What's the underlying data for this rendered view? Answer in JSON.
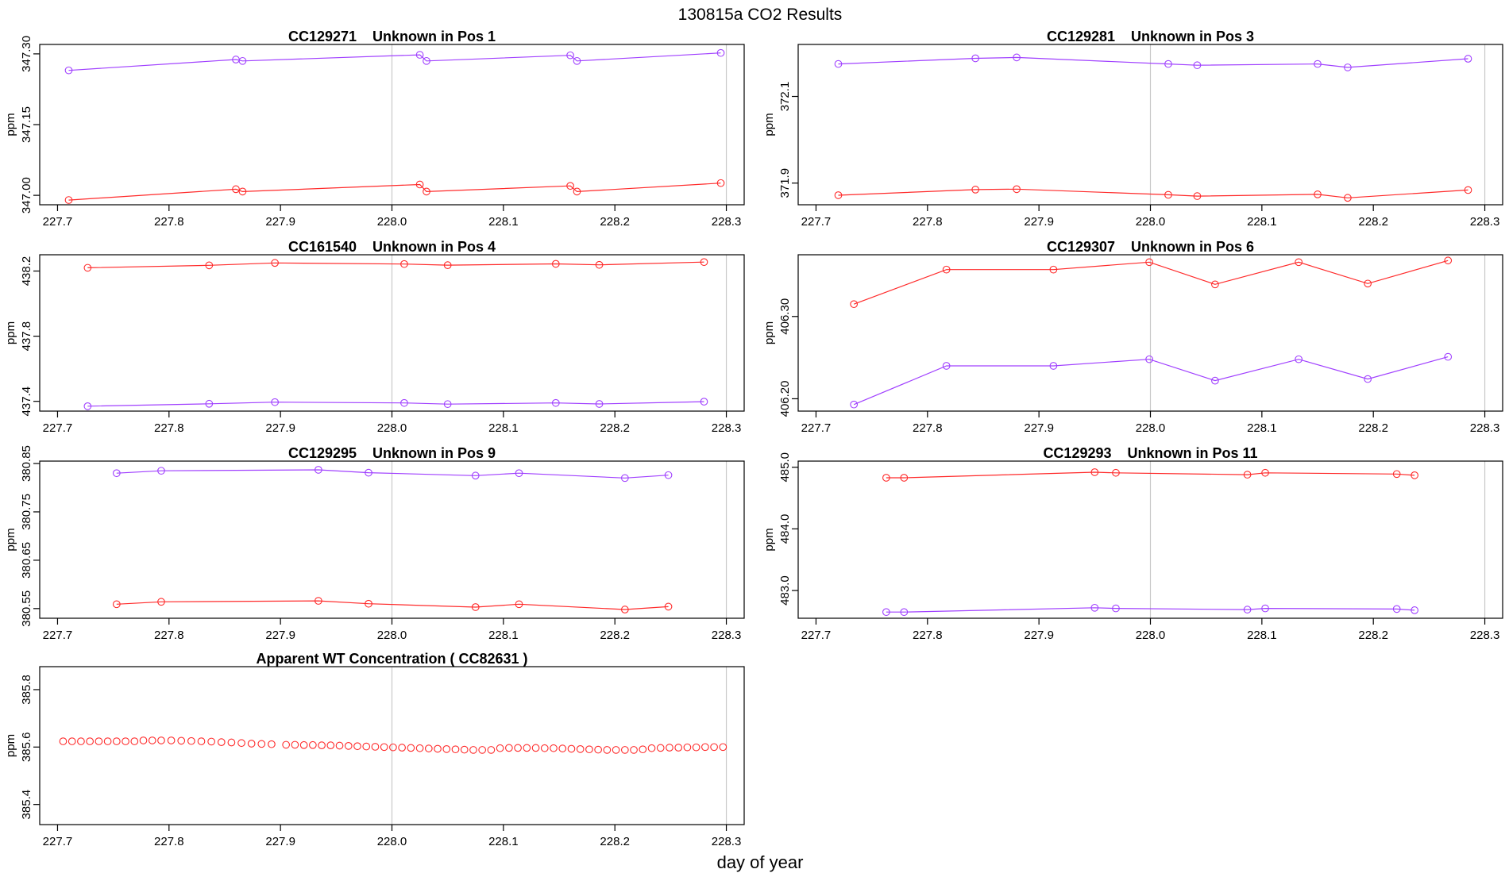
{
  "figure": {
    "title": "130815a  CO2 Results",
    "xlabel": "day of year"
  },
  "colors": {
    "red": "#ff2a2a",
    "purple": "#a040ff",
    "vline": "#c8c8c8",
    "frame": "#000000"
  },
  "chart_data": [
    {
      "type": "line",
      "title": "CC129271    Unknown in Pos 1",
      "ylabel": "ppm",
      "xlim": [
        227.684,
        228.316
      ],
      "ylim": [
        346.98,
        347.32
      ],
      "xticks": [
        227.7,
        227.8,
        227.9,
        228.0,
        228.1,
        228.2,
        228.3
      ],
      "xtick_labels": [
        "227.7",
        "227.8",
        "227.9",
        "228.0",
        "228.1",
        "228.2",
        "228.3"
      ],
      "yticks": [
        347.0,
        347.15,
        347.3
      ],
      "ytick_labels": [
        "347.00",
        "347.15",
        "347.30"
      ],
      "vlines": [
        228.0,
        228.3
      ],
      "series": [
        {
          "color": "purple",
          "x": [
            227.71,
            227.86,
            227.866,
            228.025,
            228.031,
            228.16,
            228.166,
            228.295
          ],
          "y": [
            347.265,
            347.288,
            347.285,
            347.298,
            347.285,
            347.297,
            347.285,
            347.302
          ]
        },
        {
          "color": "red",
          "x": [
            227.71,
            227.86,
            227.866,
            228.025,
            228.031,
            228.16,
            228.166,
            228.295
          ],
          "y": [
            346.99,
            347.013,
            347.008,
            347.023,
            347.008,
            347.02,
            347.008,
            347.026
          ]
        }
      ]
    },
    {
      "type": "line",
      "title": "CC129281    Unknown in Pos 3",
      "ylabel": "ppm",
      "xlim": [
        227.684,
        228.316
      ],
      "ylim": [
        371.85,
        372.22
      ],
      "xticks": [
        227.7,
        227.8,
        227.9,
        228.0,
        228.1,
        228.2,
        228.3
      ],
      "xtick_labels": [
        "227.7",
        "227.8",
        "227.9",
        "228.0",
        "228.1",
        "228.2",
        "228.3"
      ],
      "yticks": [
        371.9,
        372.1
      ],
      "ytick_labels": [
        "371.9",
        "372.1"
      ],
      "vlines": [
        228.0,
        228.3
      ],
      "series": [
        {
          "color": "purple",
          "x": [
            227.72,
            227.843,
            227.88,
            228.016,
            228.042,
            228.15,
            228.177,
            228.285
          ],
          "y": [
            372.175,
            372.188,
            372.19,
            372.175,
            372.172,
            372.175,
            372.167,
            372.187
          ]
        },
        {
          "color": "red",
          "x": [
            227.72,
            227.843,
            227.88,
            228.016,
            228.042,
            228.15,
            228.177,
            228.285
          ],
          "y": [
            371.872,
            371.885,
            371.886,
            371.873,
            371.87,
            371.874,
            371.866,
            371.884
          ]
        }
      ]
    },
    {
      "type": "line",
      "title": "CC161540    Unknown in Pos 4",
      "ylabel": "ppm",
      "xlim": [
        227.684,
        228.316
      ],
      "ylim": [
        437.34,
        438.3
      ],
      "xticks": [
        227.7,
        227.8,
        227.9,
        228.0,
        228.1,
        228.2,
        228.3
      ],
      "xtick_labels": [
        "227.7",
        "227.8",
        "227.9",
        "228.0",
        "228.1",
        "228.2",
        "228.3"
      ],
      "yticks": [
        437.4,
        437.8,
        438.2
      ],
      "ytick_labels": [
        "437.4",
        "437.8",
        "438.2"
      ],
      "vlines": [
        228.0,
        228.3
      ],
      "series": [
        {
          "color": "red",
          "x": [
            227.727,
            227.836,
            227.895,
            228.011,
            228.05,
            228.147,
            228.186,
            228.28
          ],
          "y": [
            438.22,
            438.235,
            438.25,
            438.243,
            438.236,
            438.244,
            438.238,
            438.255
          ]
        },
        {
          "color": "purple",
          "x": [
            227.727,
            227.836,
            227.895,
            228.011,
            228.05,
            228.147,
            228.186,
            228.28
          ],
          "y": [
            437.37,
            437.385,
            437.395,
            437.39,
            437.383,
            437.39,
            437.384,
            437.398
          ]
        }
      ]
    },
    {
      "type": "line",
      "title": "CC129307    Unknown in Pos 6",
      "ylabel": "ppm",
      "xlim": [
        227.684,
        228.316
      ],
      "ylim": [
        406.185,
        406.375
      ],
      "xticks": [
        227.7,
        227.8,
        227.9,
        228.0,
        228.1,
        228.2,
        228.3
      ],
      "xtick_labels": [
        "227.7",
        "227.8",
        "227.9",
        "228.0",
        "228.1",
        "228.2",
        "228.3"
      ],
      "yticks": [
        406.2,
        406.3
      ],
      "ytick_labels": [
        "406.20",
        "406.30"
      ],
      "vlines": [
        228.0,
        228.3
      ],
      "series": [
        {
          "color": "red",
          "x": [
            227.734,
            227.817,
            227.913,
            227.999,
            228.058,
            228.133,
            228.195,
            228.267
          ],
          "y": [
            406.315,
            406.357,
            406.357,
            406.366,
            406.339,
            406.366,
            406.34,
            406.368
          ]
        },
        {
          "color": "purple",
          "x": [
            227.734,
            227.817,
            227.913,
            227.999,
            228.058,
            228.133,
            228.195,
            228.267
          ],
          "y": [
            406.193,
            406.24,
            406.24,
            406.248,
            406.222,
            406.248,
            406.224,
            406.251
          ]
        }
      ]
    },
    {
      "type": "line",
      "title": "CC129295    Unknown in Pos 9",
      "ylabel": "ppm",
      "xlim": [
        227.684,
        228.316
      ],
      "ylim": [
        380.53,
        380.855
      ],
      "xticks": [
        227.7,
        227.8,
        227.9,
        228.0,
        228.1,
        228.2,
        228.3
      ],
      "xtick_labels": [
        "227.7",
        "227.8",
        "227.9",
        "228.0",
        "228.1",
        "228.2",
        "228.3"
      ],
      "yticks": [
        380.55,
        380.65,
        380.75,
        380.85
      ],
      "ytick_labels": [
        "380.55",
        "380.65",
        "380.75",
        "380.85"
      ],
      "vlines": [
        228.0,
        228.3
      ],
      "series": [
        {
          "color": "purple",
          "x": [
            227.753,
            227.793,
            227.934,
            227.979,
            228.075,
            228.114,
            228.209,
            228.248
          ],
          "y": [
            380.83,
            380.835,
            380.837,
            380.831,
            380.825,
            380.83,
            380.82,
            380.826
          ]
        },
        {
          "color": "red",
          "x": [
            227.753,
            227.793,
            227.934,
            227.979,
            228.075,
            228.114,
            228.209,
            228.248
          ],
          "y": [
            380.559,
            380.564,
            380.566,
            380.56,
            380.553,
            380.559,
            380.548,
            380.554
          ]
        }
      ]
    },
    {
      "type": "line",
      "title": "CC129293    Unknown in Pos 11",
      "ylabel": "ppm",
      "xlim": [
        227.684,
        228.316
      ],
      "ylim": [
        482.55,
        485.1
      ],
      "xticks": [
        227.7,
        227.8,
        227.9,
        228.0,
        228.1,
        228.2,
        228.3
      ],
      "xtick_labels": [
        "227.7",
        "227.8",
        "227.9",
        "228.0",
        "228.1",
        "228.2",
        "228.3"
      ],
      "yticks": [
        483.0,
        484.0,
        485.0
      ],
      "ytick_labels": [
        "483.0",
        "484.0",
        "485.0"
      ],
      "vlines": [
        228.0,
        228.3
      ],
      "series": [
        {
          "color": "red",
          "x": [
            227.763,
            227.779,
            227.95,
            227.969,
            228.087,
            228.103,
            228.221,
            228.237
          ],
          "y": [
            484.83,
            484.83,
            484.92,
            484.91,
            484.88,
            484.91,
            484.89,
            484.87
          ]
        },
        {
          "color": "purple",
          "x": [
            227.763,
            227.779,
            227.95,
            227.969,
            228.087,
            228.103,
            228.221,
            228.237
          ],
          "y": [
            482.65,
            482.65,
            482.72,
            482.71,
            482.69,
            482.71,
            482.7,
            482.68
          ]
        }
      ]
    },
    {
      "type": "scatter",
      "title": "Apparent WT Concentration ( CC82631 )",
      "ylabel": "ppm",
      "xlim": [
        227.684,
        228.316
      ],
      "ylim": [
        385.33,
        385.88
      ],
      "xticks": [
        227.7,
        227.8,
        227.9,
        228.0,
        228.1,
        228.2,
        228.3
      ],
      "xtick_labels": [
        "227.7",
        "227.8",
        "227.9",
        "228.0",
        "228.1",
        "228.2",
        "228.3"
      ],
      "yticks": [
        385.4,
        385.6,
        385.8
      ],
      "ytick_labels": [
        "385.4",
        "385.6",
        "385.8"
      ],
      "vlines": [
        228.0,
        228.3
      ],
      "series": [
        {
          "color": "red",
          "x": [
            227.705,
            227.713,
            227.721,
            227.729,
            227.737,
            227.745,
            227.753,
            227.761,
            227.769,
            227.777,
            227.785,
            227.793,
            227.802,
            227.811,
            227.82,
            227.829,
            227.838,
            227.847,
            227.856,
            227.865,
            227.874,
            227.883,
            227.892,
            227.905,
            227.913,
            227.921,
            227.929,
            227.937,
            227.945,
            227.953,
            227.961,
            227.969,
            227.977,
            227.985,
            227.993,
            228.001,
            228.009,
            228.017,
            228.025,
            228.033,
            228.041,
            228.049,
            228.057,
            228.065,
            228.073,
            228.081,
            228.089,
            228.097,
            228.105,
            228.113,
            228.121,
            228.129,
            228.137,
            228.145,
            228.153,
            228.161,
            228.169,
            228.177,
            228.185,
            228.193,
            228.201,
            228.209,
            228.217,
            228.225,
            228.233,
            228.241,
            228.249,
            228.257,
            228.265,
            228.273,
            228.281,
            228.289,
            228.297
          ],
          "y": [
            385.62,
            385.62,
            385.62,
            385.62,
            385.62,
            385.62,
            385.62,
            385.62,
            385.62,
            385.623,
            385.623,
            385.623,
            385.623,
            385.622,
            385.621,
            385.62,
            385.619,
            385.617,
            385.616,
            385.614,
            385.612,
            385.611,
            385.61,
            385.608,
            385.608,
            385.607,
            385.607,
            385.606,
            385.606,
            385.605,
            385.604,
            385.603,
            385.602,
            385.601,
            385.6,
            385.599,
            385.598,
            385.597,
            385.596,
            385.595,
            385.594,
            385.593,
            385.592,
            385.591,
            385.59,
            385.59,
            385.59,
            385.596,
            385.597,
            385.597,
            385.597,
            385.597,
            385.596,
            385.596,
            385.595,
            385.594,
            385.593,
            385.592,
            385.591,
            385.59,
            385.59,
            385.59,
            385.59,
            385.592,
            385.596,
            385.597,
            385.598,
            385.598,
            385.599,
            385.599,
            385.6,
            385.6,
            385.6
          ]
        }
      ]
    }
  ]
}
